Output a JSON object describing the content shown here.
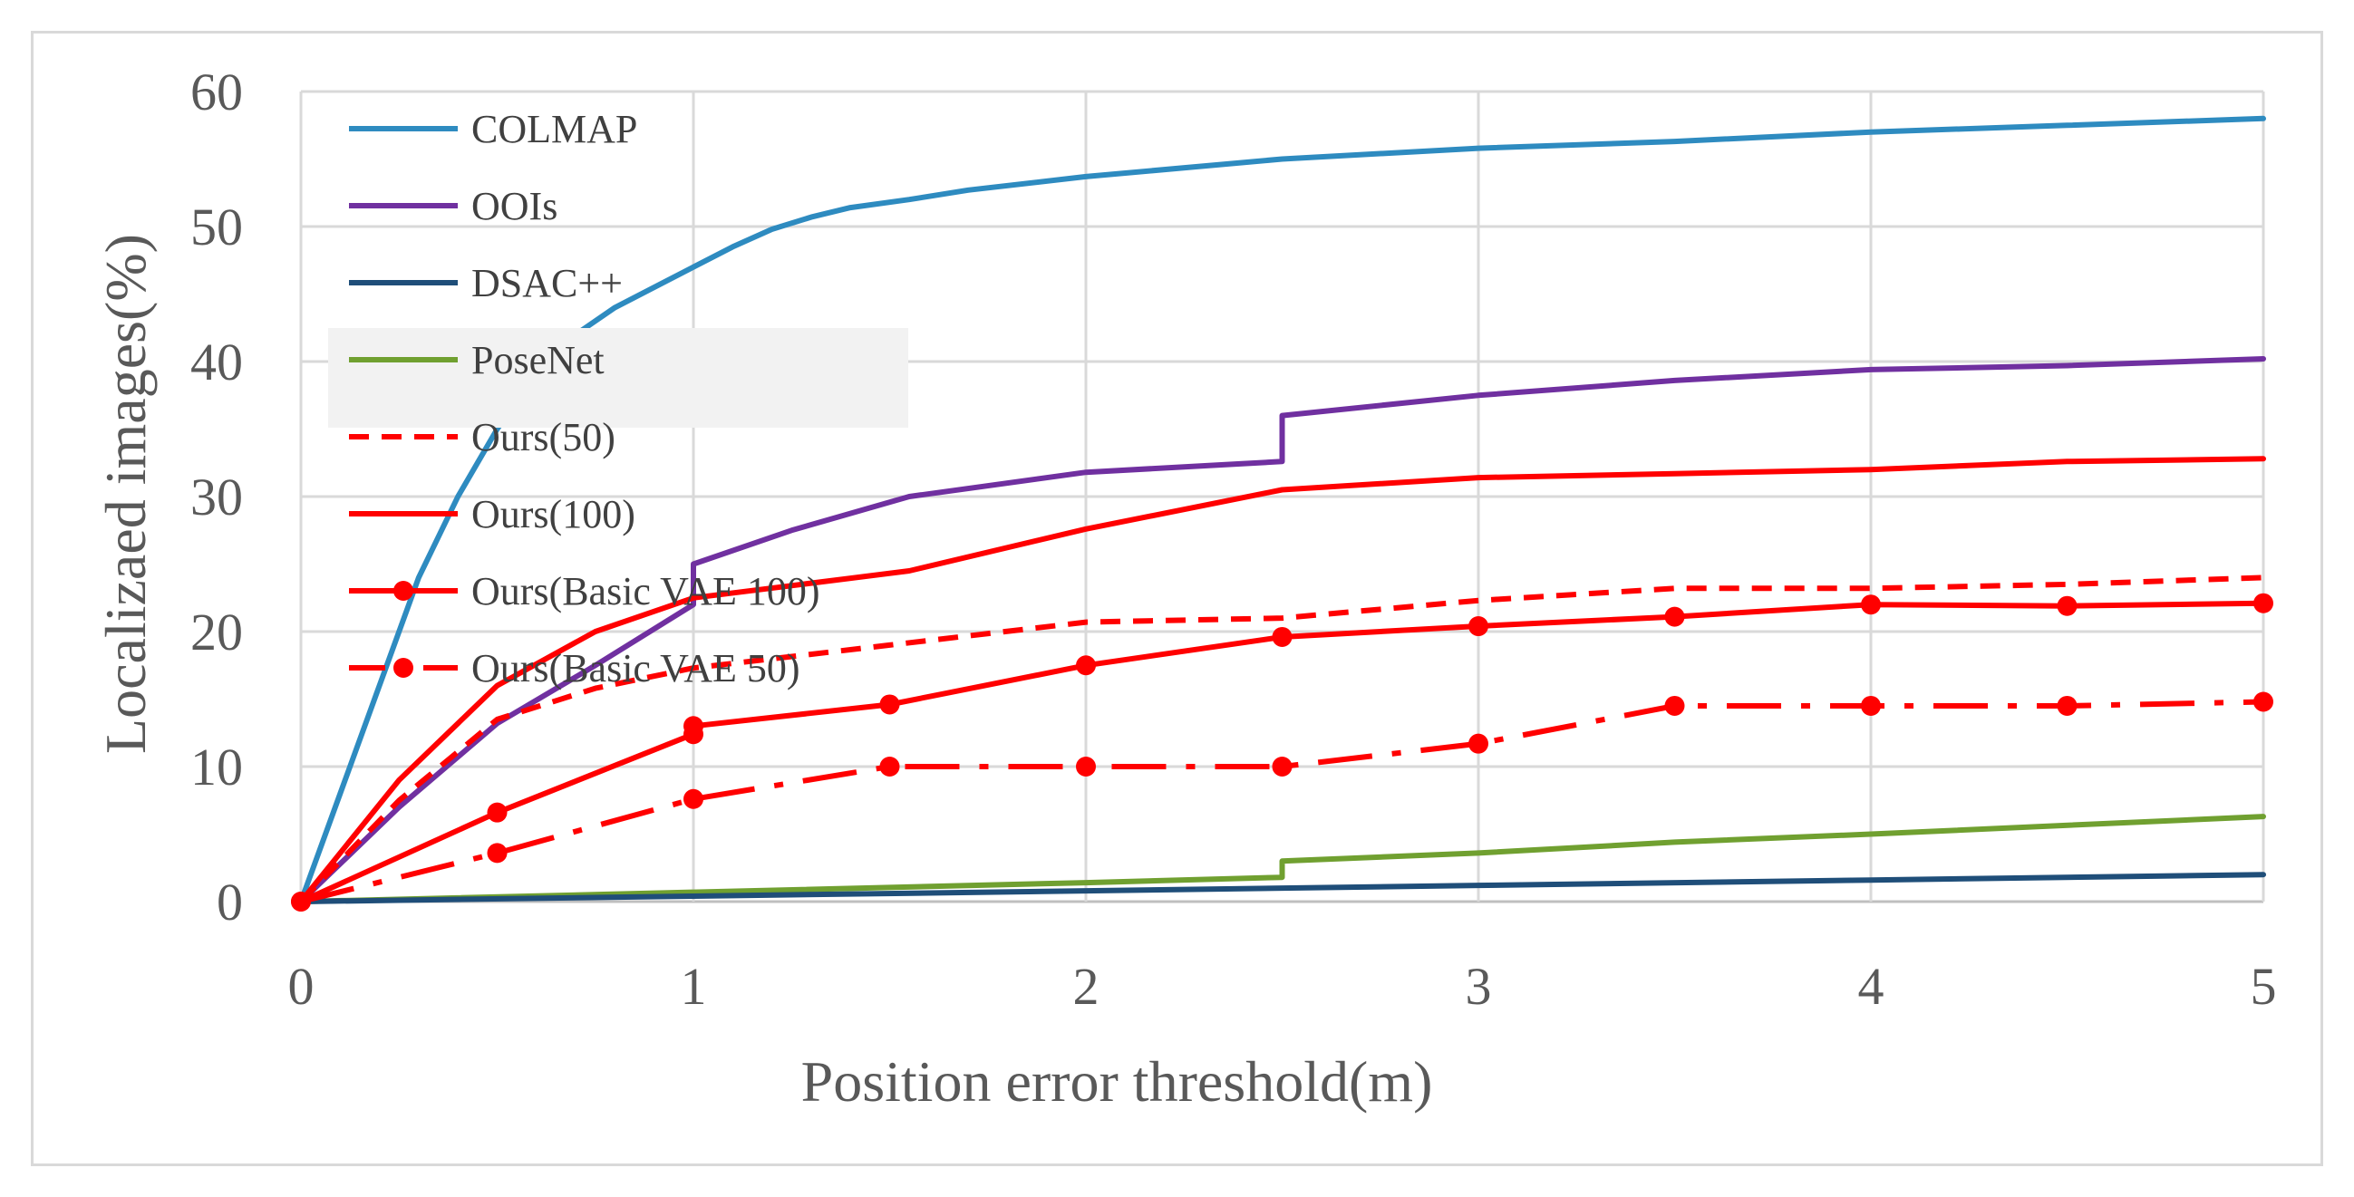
{
  "chart_data": {
    "type": "line",
    "title": "",
    "xlabel": "Position error threshold(m)",
    "ylabel": "Localizaed images(%)",
    "xlim": [
      0,
      5
    ],
    "ylim": [
      0,
      60
    ],
    "xticks": [
      0,
      1,
      2,
      3,
      4,
      5
    ],
    "yticks": [
      0,
      10,
      20,
      30,
      40,
      50,
      60
    ],
    "grid": true,
    "legend": "top-left",
    "series": [
      {
        "name": "COLMAP",
        "color": "#2e8bc0",
        "style": "solid",
        "marker": "none",
        "x": [
          0,
          0.1,
          0.2,
          0.3,
          0.4,
          0.5,
          0.6,
          0.7,
          0.8,
          0.9,
          1.0,
          1.1,
          1.2,
          1.3,
          1.4,
          1.55,
          1.7,
          2.0,
          2.5,
          3.0,
          3.5,
          4.0,
          4.5,
          5.0
        ],
        "y": [
          0,
          8,
          16,
          24,
          30,
          35,
          39,
          42,
          44,
          45.5,
          47,
          48.5,
          49.8,
          50.7,
          51.4,
          52,
          52.7,
          53.7,
          55,
          55.8,
          56.3,
          57,
          57.5,
          58
        ]
      },
      {
        "name": "OOIs",
        "color": "#7030a0",
        "style": "solid",
        "marker": "none",
        "x": [
          0,
          0.25,
          0.5,
          0.75,
          1.0,
          1.0,
          1.25,
          1.55,
          2.0,
          2.5,
          2.5,
          3.0,
          3.5,
          4.0,
          4.5,
          5.0
        ],
        "y": [
          0,
          7,
          13.2,
          17.5,
          22,
          25,
          27.5,
          30,
          31.8,
          32.6,
          36,
          37.5,
          38.6,
          39.4,
          39.7,
          40.2
        ]
      },
      {
        "name": "DSAC++",
        "color": "#1f4e79",
        "style": "solid",
        "marker": "none",
        "x": [
          0,
          1,
          2,
          2.5,
          3,
          4,
          5
        ],
        "y": [
          0,
          0.4,
          0.8,
          1.0,
          1.2,
          1.6,
          2.0
        ]
      },
      {
        "name": "PoseNet",
        "color": "#70a030",
        "style": "solid",
        "marker": "none",
        "x": [
          0,
          1,
          2,
          2.5,
          2.5,
          3,
          3.5,
          4,
          5
        ],
        "y": [
          0,
          0.7,
          1.4,
          1.8,
          3.0,
          3.6,
          4.4,
          5.0,
          6.3
        ]
      },
      {
        "name": "Ours(50)",
        "color": "#ff0000",
        "style": "dashed",
        "marker": "none",
        "x": [
          0,
          0.25,
          0.5,
          0.75,
          1.0,
          1.5,
          2.0,
          2.5,
          3.0,
          3.5,
          4.0,
          4.5,
          5.0
        ],
        "y": [
          0,
          7.5,
          13.5,
          15.8,
          17.3,
          19.0,
          20.7,
          21.0,
          22.3,
          23.2,
          23.2,
          23.5,
          24.0
        ]
      },
      {
        "name": "Ours(100)",
        "color": "#ff0000",
        "style": "solid",
        "marker": "none",
        "x": [
          0,
          0.25,
          0.5,
          0.75,
          1.0,
          1.25,
          1.55,
          2.0,
          2.5,
          3.0,
          3.5,
          4.0,
          4.5,
          5.0
        ],
        "y": [
          0,
          9,
          16,
          20,
          22.5,
          23.4,
          24.5,
          27.6,
          30.5,
          31.4,
          31.7,
          32.0,
          32.6,
          32.8
        ]
      },
      {
        "name": "Ours(Basic VAE 100)",
        "color": "#ff0000",
        "style": "solid",
        "marker": "circle",
        "x": [
          0,
          0.5,
          1.0,
          1.0,
          1.5,
          2.0,
          2.5,
          3.0,
          3.5,
          4.0,
          4.5,
          5.0
        ],
        "y": [
          0,
          6.6,
          12.4,
          13.0,
          14.6,
          17.5,
          19.6,
          20.4,
          21.1,
          22.0,
          21.9,
          22.1
        ]
      },
      {
        "name": "Ours(Basic VAE 50)",
        "color": "#ff0000",
        "style": "dashdot",
        "marker": "circle",
        "x": [
          0,
          0.5,
          1.0,
          1.5,
          2.0,
          2.5,
          3.0,
          3.5,
          4.0,
          4.5,
          5.0
        ],
        "y": [
          0,
          3.6,
          7.6,
          10.0,
          10.0,
          10.0,
          11.7,
          14.5,
          14.5,
          14.5,
          14.8
        ]
      }
    ]
  }
}
